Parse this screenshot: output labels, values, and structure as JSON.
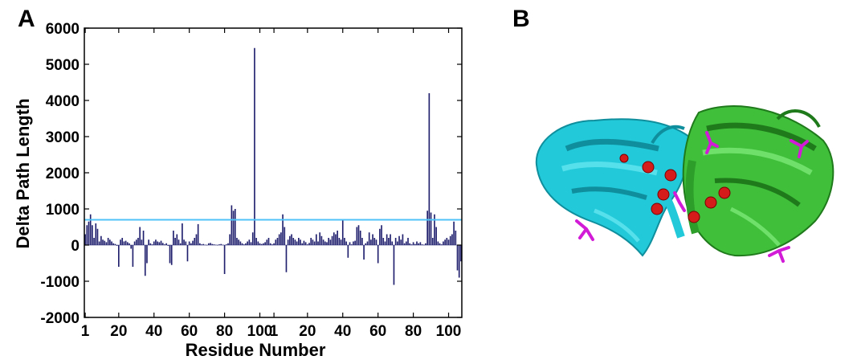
{
  "panels": {
    "a_label": "A",
    "b_label": "B"
  },
  "chart_data": {
    "type": "bar",
    "title": "",
    "xlabel": "Residue Number",
    "ylabel": "Delta Path Length",
    "ylim": [
      -2000,
      6000
    ],
    "yticks": [
      "6000",
      "5000",
      "4000",
      "3000",
      "2000",
      "1000",
      "0",
      "-1000",
      "-2000"
    ],
    "xtick_labels": [
      "1",
      "20",
      "40",
      "60",
      "80",
      "100",
      "1",
      "20",
      "40",
      "60",
      "80",
      "100"
    ],
    "xtick_residue_index": [
      1,
      20,
      40,
      60,
      80,
      100,
      108,
      127,
      147,
      167,
      187,
      207
    ],
    "residues_per_chain": 107,
    "total_residues": 214,
    "threshold": 700,
    "threshold_color": "#4fc3f7",
    "bar_color": "#1f1f6e",
    "grid": false,
    "legend": "none",
    "series": [
      {
        "values": [
          300,
          550,
          650,
          850,
          550,
          200,
          600,
          450,
          100,
          250,
          150,
          120,
          80,
          200,
          150,
          100,
          50,
          30,
          -20,
          -600,
          150,
          200,
          100,
          120,
          80,
          50,
          -100,
          -600,
          100,
          150,
          200,
          500,
          150,
          400,
          -850,
          -500,
          150,
          50,
          20,
          100,
          150,
          100,
          80,
          120,
          60,
          20,
          50,
          -20,
          -500,
          -550,
          400,
          200,
          300,
          150,
          50,
          600,
          150,
          100,
          -450,
          100,
          50,
          120,
          200,
          300,
          580,
          50,
          20,
          30,
          10,
          5,
          50,
          60,
          30,
          20,
          10,
          5,
          20,
          30,
          10,
          -800,
          20,
          50,
          300,
          1100,
          950,
          1000,
          200,
          150,
          100,
          50,
          20,
          50,
          100,
          150,
          80,
          350,
          5450,
          200,
          100,
          50,
          30,
          50,
          80,
          150,
          200,
          50,
          20,
          50,
          150,
          200,
          300,
          350,
          850,
          500,
          -750,
          150,
          250,
          300,
          200,
          150,
          100,
          200,
          150,
          50,
          120,
          80,
          20,
          60,
          200,
          150,
          100,
          300,
          100,
          350,
          250,
          150,
          100,
          80,
          200,
          150,
          250,
          350,
          300,
          400,
          200,
          150,
          700,
          200,
          100,
          -350,
          80,
          20,
          100,
          120,
          500,
          550,
          400,
          200,
          -400,
          50,
          100,
          350,
          150,
          300,
          200,
          150,
          -500,
          450,
          550,
          200,
          100,
          300,
          200,
          300,
          100,
          -1100,
          200,
          100,
          250,
          150,
          300,
          50,
          100,
          200,
          50,
          20,
          80,
          30,
          100,
          50,
          80,
          20,
          10,
          50,
          950,
          4200,
          900,
          200,
          850,
          500,
          100,
          50,
          20,
          100,
          150,
          200,
          150,
          250,
          300,
          650,
          400,
          -700,
          -900,
          -450
        ]
      }
    ]
  }
}
